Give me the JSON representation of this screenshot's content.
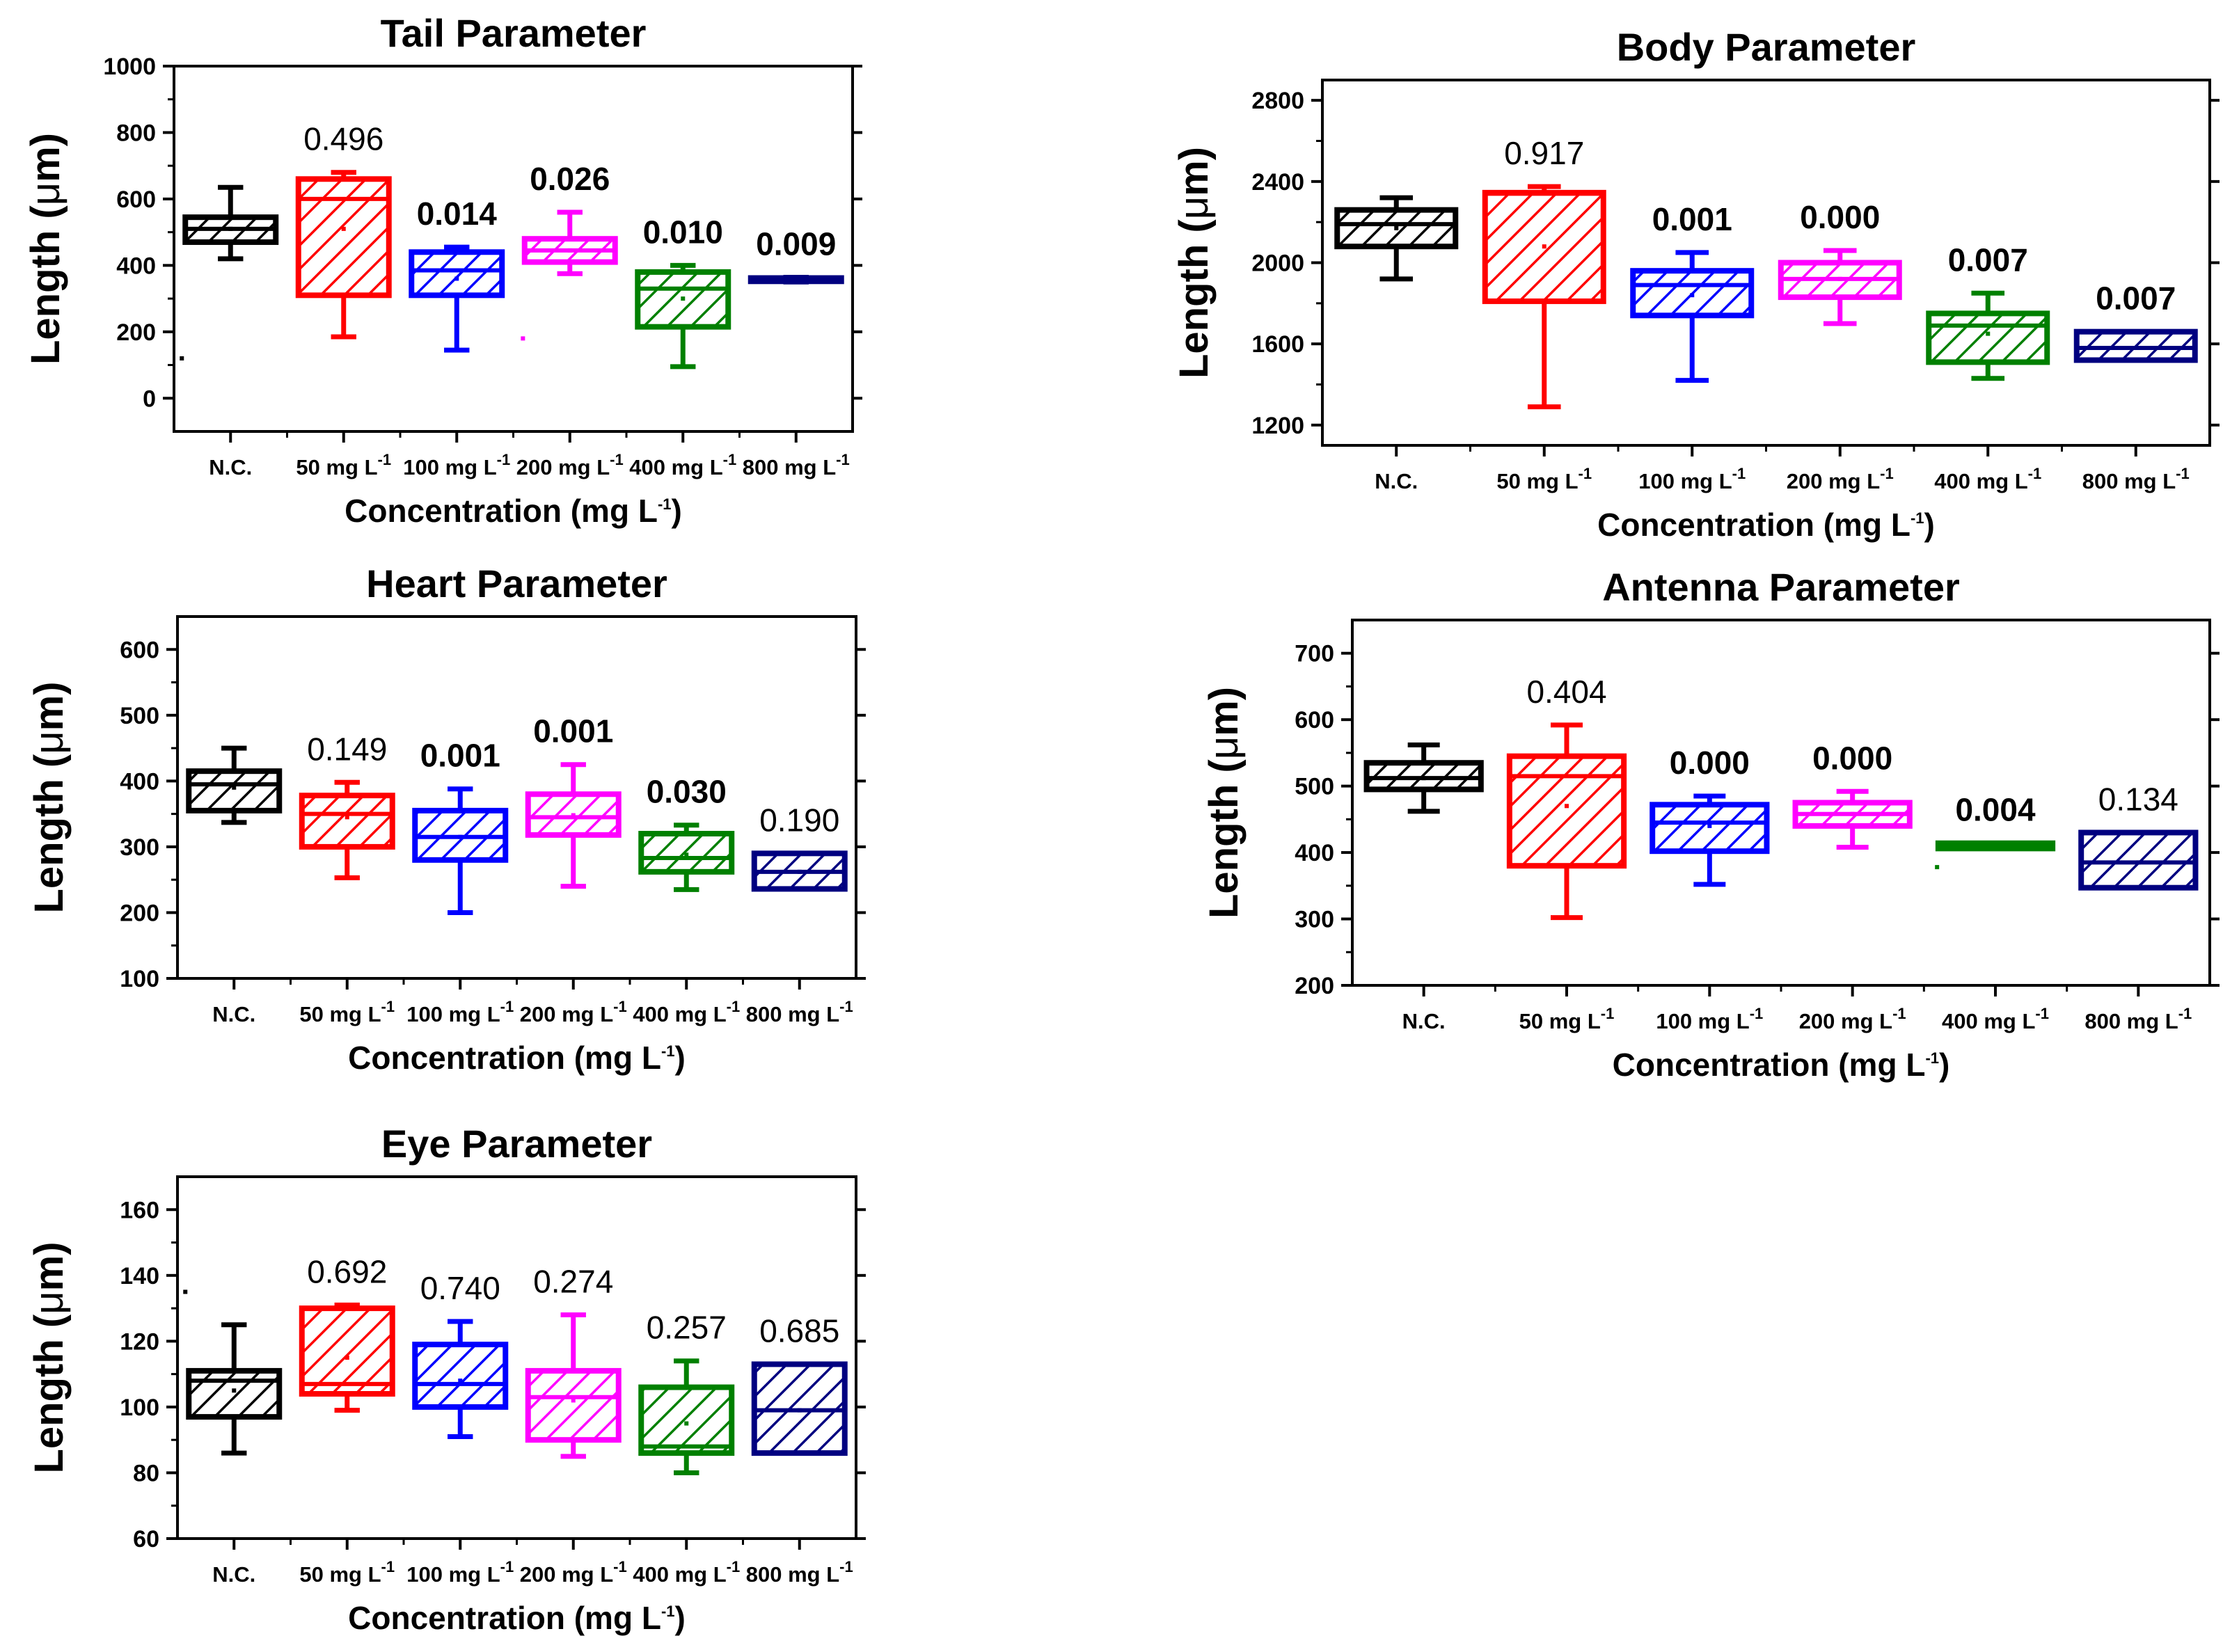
{
  "colors": {
    "nc": "#000000",
    "c50": "#ff0000",
    "c100": "#0000ff",
    "c200": "#ff00ff",
    "c400": "#008000",
    "c800": "#000080"
  },
  "common": {
    "ylabel_main": "Length (",
    "ylabel_mu": "μ",
    "ylabel_end": "m)",
    "xlabel_main": "Concentration (mg L",
    "xlabel_sup": "-1",
    "xlabel_end": ")",
    "categories": [
      "N.C.",
      "50 mg L",
      "100 mg L",
      "200 mg L",
      "400 mg L",
      "800 mg L"
    ],
    "category_sup": "-1"
  },
  "chart_data": [
    {
      "id": "tail",
      "type": "box",
      "title": "Tail Parameter",
      "ylim": [
        -100,
        1000
      ],
      "yticks": [
        0,
        200,
        400,
        600,
        800,
        1000
      ],
      "boxes": [
        {
          "q1": 470,
          "median": 510,
          "q3": 545,
          "whisker_low": 420,
          "whisker_high": 635,
          "mean": 510,
          "outliers": [
            120
          ],
          "p": "",
          "p_bold": false
        },
        {
          "q1": 310,
          "median": 600,
          "q3": 660,
          "whisker_low": 185,
          "whisker_high": 680,
          "mean": 510,
          "outliers": [],
          "p": "0.496",
          "p_bold": false
        },
        {
          "q1": 310,
          "median": 385,
          "q3": 440,
          "whisker_low": 145,
          "whisker_high": 455,
          "mean": 360,
          "outliers": [],
          "p": "0.014",
          "p_bold": true
        },
        {
          "q1": 410,
          "median": 445,
          "q3": 480,
          "whisker_low": 375,
          "whisker_high": 560,
          "mean": 445,
          "outliers": [
            180
          ],
          "p": "0.026",
          "p_bold": true
        },
        {
          "q1": 215,
          "median": 330,
          "q3": 380,
          "whisker_low": 95,
          "whisker_high": 400,
          "mean": 300,
          "outliers": [],
          "p": "0.010",
          "p_bold": true
        },
        {
          "q1": 352,
          "median": 357,
          "q3": 362,
          "whisker_low": 350,
          "whisker_high": 364,
          "mean": 357,
          "outliers": [],
          "p": "0.009",
          "p_bold": true
        }
      ]
    },
    {
      "id": "body",
      "type": "box",
      "title": "Body Parameter",
      "ylim": [
        1100,
        2900
      ],
      "yticks": [
        1200,
        1600,
        2000,
        2400,
        2800
      ],
      "boxes": [
        {
          "q1": 2080,
          "median": 2190,
          "q3": 2260,
          "whisker_low": 1920,
          "whisker_high": 2320,
          "mean": 2170,
          "outliers": [],
          "p": "",
          "p_bold": false
        },
        {
          "q1": 1810,
          "median": 2340,
          "q3": 2345,
          "whisker_low": 1290,
          "whisker_high": 2375,
          "mean": 2080,
          "outliers": [],
          "p": "0.917",
          "p_bold": false
        },
        {
          "q1": 1740,
          "median": 1890,
          "q3": 1960,
          "whisker_low": 1420,
          "whisker_high": 2050,
          "mean": 1840,
          "outliers": [],
          "p": "0.001",
          "p_bold": true
        },
        {
          "q1": 1830,
          "median": 1920,
          "q3": 2000,
          "whisker_low": 1700,
          "whisker_high": 2060,
          "mean": 1920,
          "outliers": [],
          "p": "0.000",
          "p_bold": true
        },
        {
          "q1": 1510,
          "median": 1690,
          "q3": 1750,
          "whisker_low": 1430,
          "whisker_high": 1850,
          "mean": 1650,
          "outliers": [],
          "p": "0.007",
          "p_bold": true
        },
        {
          "q1": 1520,
          "median": 1580,
          "q3": 1660,
          "whisker_low": 1520,
          "whisker_high": 1660,
          "mean": 1580,
          "outliers": [],
          "p": "0.007",
          "p_bold": true
        }
      ]
    },
    {
      "id": "heart",
      "type": "box",
      "title": "Heart Parameter",
      "ylim": [
        100,
        650
      ],
      "yticks": [
        100,
        200,
        300,
        400,
        500,
        600
      ],
      "boxes": [
        {
          "q1": 355,
          "median": 395,
          "q3": 415,
          "whisker_low": 337,
          "whisker_high": 450,
          "mean": 390,
          "outliers": [],
          "p": "",
          "p_bold": false
        },
        {
          "q1": 300,
          "median": 350,
          "q3": 378,
          "whisker_low": 253,
          "whisker_high": 398,
          "mean": 345,
          "outliers": [],
          "p": "0.149",
          "p_bold": false
        },
        {
          "q1": 280,
          "median": 315,
          "q3": 355,
          "whisker_low": 200,
          "whisker_high": 388,
          "mean": 315,
          "outliers": [],
          "p": "0.001",
          "p_bold": true
        },
        {
          "q1": 318,
          "median": 345,
          "q3": 380,
          "whisker_low": 240,
          "whisker_high": 425,
          "mean": 348,
          "outliers": [],
          "p": "0.001",
          "p_bold": true
        },
        {
          "q1": 262,
          "median": 283,
          "q3": 320,
          "whisker_low": 235,
          "whisker_high": 333,
          "mean": 288,
          "outliers": [],
          "p": "0.030",
          "p_bold": true
        },
        {
          "q1": 236,
          "median": 262,
          "q3": 290,
          "whisker_low": 236,
          "whisker_high": 290,
          "mean": 262,
          "outliers": [],
          "p": "0.190",
          "p_bold": false
        }
      ]
    },
    {
      "id": "antenna",
      "type": "box",
      "title": "Antenna Parameter",
      "ylim": [
        200,
        750
      ],
      "yticks": [
        200,
        300,
        400,
        500,
        600,
        700
      ],
      "boxes": [
        {
          "q1": 495,
          "median": 512,
          "q3": 535,
          "whisker_low": 462,
          "whisker_high": 562,
          "mean": 512,
          "outliers": [],
          "p": "",
          "p_bold": false
        },
        {
          "q1": 380,
          "median": 515,
          "q3": 545,
          "whisker_low": 302,
          "whisker_high": 592,
          "mean": 470,
          "outliers": [],
          "p": "0.404",
          "p_bold": false
        },
        {
          "q1": 402,
          "median": 445,
          "q3": 472,
          "whisker_low": 352,
          "whisker_high": 485,
          "mean": 440,
          "outliers": [],
          "p": "0.000",
          "p_bold": true
        },
        {
          "q1": 440,
          "median": 458,
          "q3": 475,
          "whisker_low": 408,
          "whisker_high": 492,
          "mean": 458,
          "outliers": [],
          "p": "0.000",
          "p_bold": true
        },
        {
          "q1": 406,
          "median": 410,
          "q3": 414,
          "whisker_low": 406,
          "whisker_high": 414,
          "mean": 410,
          "outliers": [
            378
          ],
          "p": "0.004",
          "p_bold": true
        },
        {
          "q1": 347,
          "median": 385,
          "q3": 430,
          "whisker_low": 347,
          "whisker_high": 430,
          "mean": 385,
          "outliers": [],
          "p": "0.134",
          "p_bold": false
        }
      ]
    },
    {
      "id": "eye",
      "type": "box",
      "title": "Eye Parameter",
      "ylim": [
        60,
        170
      ],
      "yticks": [
        60,
        80,
        100,
        120,
        140,
        160
      ],
      "boxes": [
        {
          "q1": 97,
          "median": 108,
          "q3": 111,
          "whisker_low": 86,
          "whisker_high": 125,
          "mean": 105,
          "outliers": [
            135
          ],
          "p": "",
          "p_bold": false
        },
        {
          "q1": 104,
          "median": 107,
          "q3": 130,
          "whisker_low": 99,
          "whisker_high": 131,
          "mean": 115,
          "outliers": [],
          "p": "0.692",
          "p_bold": false
        },
        {
          "q1": 100,
          "median": 107,
          "q3": 119,
          "whisker_low": 91,
          "whisker_high": 126,
          "mean": 108,
          "outliers": [],
          "p": "0.740",
          "p_bold": false
        },
        {
          "q1": 90,
          "median": 103,
          "q3": 111,
          "whisker_low": 85,
          "whisker_high": 128,
          "mean": 102,
          "outliers": [],
          "p": "0.274",
          "p_bold": false
        },
        {
          "q1": 86,
          "median": 88,
          "q3": 106,
          "whisker_low": 80,
          "whisker_high": 114,
          "mean": 95,
          "outliers": [],
          "p": "0.257",
          "p_bold": false
        },
        {
          "q1": 86,
          "median": 99,
          "q3": 113,
          "whisker_low": 86,
          "whisker_high": 113,
          "mean": 99,
          "outliers": [],
          "p": "0.685",
          "p_bold": false
        }
      ]
    }
  ]
}
